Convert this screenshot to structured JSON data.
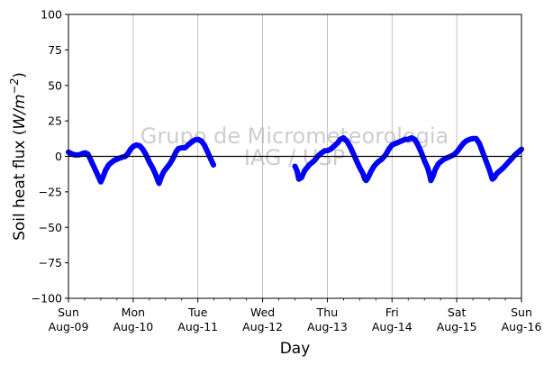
{
  "chart_data": {
    "type": "line",
    "title": "",
    "xlabel": "Day",
    "ylabel": "Soil heat flux (W/m⁻²)",
    "ylabel_parts": {
      "main": "Soil heat flux (",
      "unit_var": "W/m",
      "unit_exp": "−2",
      "close": ")"
    },
    "ylim": [
      -100,
      100
    ],
    "yticks": [
      -100,
      -75,
      -50,
      -25,
      0,
      25,
      50,
      75,
      100
    ],
    "ytick_labels": [
      "−100",
      "−75",
      "−50",
      "−25",
      "0",
      "25",
      "50",
      "75",
      "100"
    ],
    "xlim": [
      0,
      7
    ],
    "xticks": [
      {
        "day": 0,
        "dow": "Sun",
        "date": "Aug-09"
      },
      {
        "day": 1,
        "dow": "Mon",
        "date": "Aug-10"
      },
      {
        "day": 2,
        "dow": "Tue",
        "date": "Aug-11"
      },
      {
        "day": 3,
        "dow": "Wed",
        "date": "Aug-12"
      },
      {
        "day": 4,
        "dow": "Thu",
        "date": "Aug-13"
      },
      {
        "day": 5,
        "dow": "Fri",
        "date": "Aug-14"
      },
      {
        "day": 6,
        "dow": "Sat",
        "date": "Aug-15"
      },
      {
        "day": 7,
        "dow": "Sun",
        "date": "Aug-16"
      }
    ],
    "grid": "vertical",
    "zero_line": true,
    "watermark": [
      "Grupo de Micrometeorologia",
      "IAG / USP"
    ],
    "series": [
      {
        "color": "#0000ff",
        "segments": [
          [
            [
              0,
              3
            ],
            [
              0.04,
              2
            ],
            [
              0.1,
              1
            ],
            [
              0.16,
              1
            ],
            [
              0.22,
              2
            ],
            [
              0.26,
              2.5
            ],
            [
              0.3,
              1.5
            ],
            [
              0.34,
              -2
            ],
            [
              0.38,
              -6
            ],
            [
              0.42,
              -10
            ],
            [
              0.46,
              -14
            ],
            [
              0.5,
              -18
            ],
            [
              0.53,
              -15
            ],
            [
              0.57,
              -10
            ],
            [
              0.62,
              -6
            ],
            [
              0.7,
              -3
            ],
            [
              0.8,
              -1
            ],
            [
              0.88,
              0
            ],
            [
              0.92,
              2
            ],
            [
              0.96,
              5
            ],
            [
              1.0,
              7
            ],
            [
              1.05,
              8
            ],
            [
              1.1,
              7.5
            ],
            [
              1.15,
              5
            ],
            [
              1.2,
              1
            ],
            [
              1.25,
              -4
            ],
            [
              1.3,
              -8
            ],
            [
              1.35,
              -13
            ],
            [
              1.38,
              -17
            ],
            [
              1.4,
              -19
            ],
            [
              1.43,
              -15
            ],
            [
              1.47,
              -11
            ],
            [
              1.52,
              -8
            ],
            [
              1.57,
              -5
            ],
            [
              1.62,
              -1
            ],
            [
              1.66,
              3
            ],
            [
              1.7,
              5.5
            ],
            [
              1.75,
              6
            ],
            [
              1.8,
              6
            ],
            [
              1.85,
              8
            ],
            [
              1.9,
              10
            ],
            [
              1.95,
              11.5
            ],
            [
              2.0,
              12
            ],
            [
              2.05,
              11
            ],
            [
              2.1,
              8
            ],
            [
              2.15,
              3
            ],
            [
              2.2,
              -2
            ],
            [
              2.24,
              -6
            ]
          ],
          [
            [
              3.5,
              -7
            ],
            [
              3.53,
              -10
            ],
            [
              3.56,
              -16
            ],
            [
              3.6,
              -15
            ],
            [
              3.65,
              -10
            ],
            [
              3.72,
              -6
            ],
            [
              3.8,
              -3
            ],
            [
              3.85,
              0
            ],
            [
              3.9,
              2
            ],
            [
              3.96,
              4
            ],
            [
              4.0,
              4
            ],
            [
              4.05,
              5
            ],
            [
              4.1,
              7
            ],
            [
              4.15,
              9
            ],
            [
              4.2,
              12
            ],
            [
              4.25,
              13
            ],
            [
              4.3,
              11
            ],
            [
              4.35,
              7
            ],
            [
              4.4,
              2
            ],
            [
              4.45,
              -3
            ],
            [
              4.5,
              -8
            ],
            [
              4.55,
              -12
            ],
            [
              4.58,
              -16
            ],
            [
              4.6,
              -17
            ],
            [
              4.63,
              -15
            ],
            [
              4.67,
              -11
            ],
            [
              4.72,
              -7
            ],
            [
              4.78,
              -4
            ],
            [
              4.84,
              -2
            ],
            [
              4.9,
              1
            ],
            [
              4.95,
              5
            ],
            [
              5.0,
              8
            ],
            [
              5.05,
              9
            ],
            [
              5.1,
              10
            ],
            [
              5.15,
              11
            ],
            [
              5.2,
              12
            ],
            [
              5.25,
              12
            ],
            [
              5.3,
              13
            ],
            [
              5.35,
              12
            ],
            [
              5.4,
              8
            ],
            [
              5.45,
              3
            ],
            [
              5.5,
              -3
            ],
            [
              5.55,
              -8
            ],
            [
              5.58,
              -13
            ],
            [
              5.6,
              -17
            ],
            [
              5.63,
              -14
            ],
            [
              5.67,
              -9
            ],
            [
              5.72,
              -5
            ],
            [
              5.8,
              -2
            ],
            [
              5.9,
              0
            ],
            [
              5.95,
              1
            ],
            [
              6.0,
              3
            ],
            [
              6.05,
              6
            ],
            [
              6.1,
              9
            ],
            [
              6.15,
              11
            ],
            [
              6.2,
              12
            ],
            [
              6.25,
              12.5
            ],
            [
              6.3,
              12.5
            ],
            [
              6.35,
              9
            ],
            [
              6.4,
              3
            ],
            [
              6.45,
              -3
            ],
            [
              6.5,
              -9
            ],
            [
              6.53,
              -13
            ],
            [
              6.55,
              -16
            ],
            [
              6.58,
              -15
            ],
            [
              6.62,
              -12
            ],
            [
              6.67,
              -10
            ],
            [
              6.72,
              -8
            ],
            [
              6.78,
              -5
            ],
            [
              6.84,
              -2
            ],
            [
              6.9,
              1
            ],
            [
              6.95,
              3
            ],
            [
              7.0,
              5
            ]
          ]
        ]
      }
    ]
  }
}
